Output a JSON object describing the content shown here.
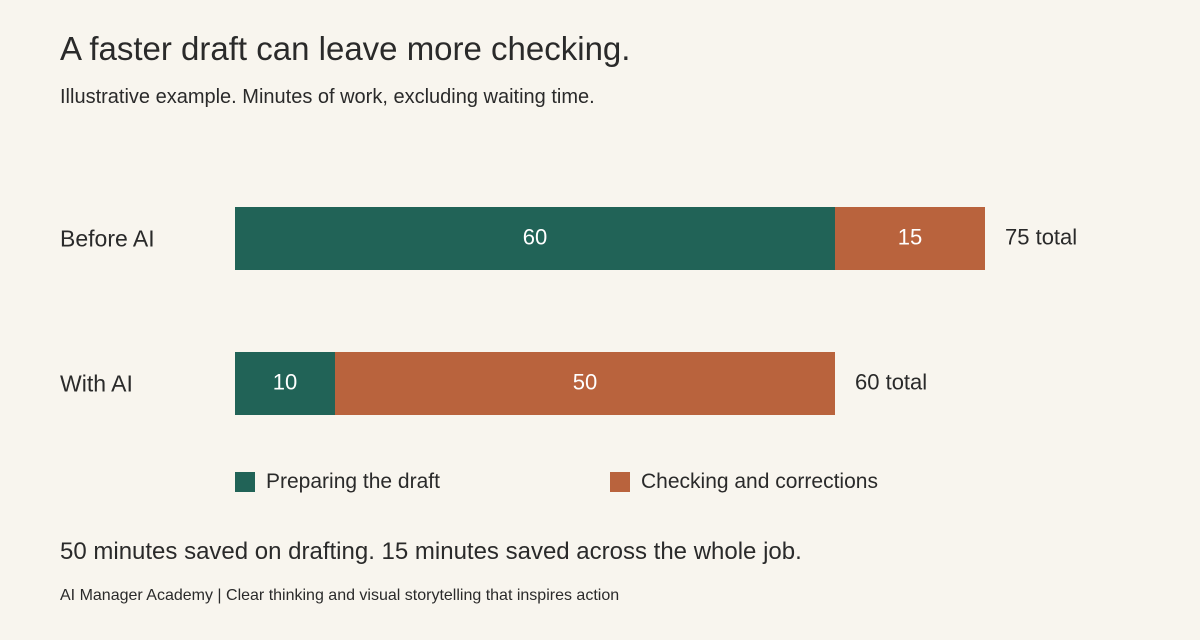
{
  "header": {
    "title": "A faster draft can leave more checking.",
    "subtitle": "Illustrative example. Minutes of work, excluding waiting time."
  },
  "chart_data": {
    "type": "bar",
    "orientation": "horizontal",
    "stacked": true,
    "title": "A faster draft can leave more checking.",
    "subtitle": "Illustrative example. Minutes of work, excluding waiting time.",
    "categories": [
      "Before AI",
      "With AI"
    ],
    "series": [
      {
        "name": "Preparing the draft",
        "values": [
          60,
          10
        ],
        "color": "#216357"
      },
      {
        "name": "Checking and corrections",
        "values": [
          15,
          50
        ],
        "color": "#b9633d"
      }
    ],
    "totals": [
      75,
      60
    ],
    "total_suffix": " total",
    "xlim": [
      0,
      75
    ],
    "grid": false,
    "legend_position": "bottom"
  },
  "legend": [
    {
      "label": "Preparing the draft",
      "color": "#216357"
    },
    {
      "label": "Checking and corrections",
      "color": "#b9633d"
    }
  ],
  "takeaway": "50 minutes saved on drafting. 15 minutes saved across the whole job.",
  "footer": "AI Manager Academy | Clear thinking and visual storytelling that inspires action"
}
